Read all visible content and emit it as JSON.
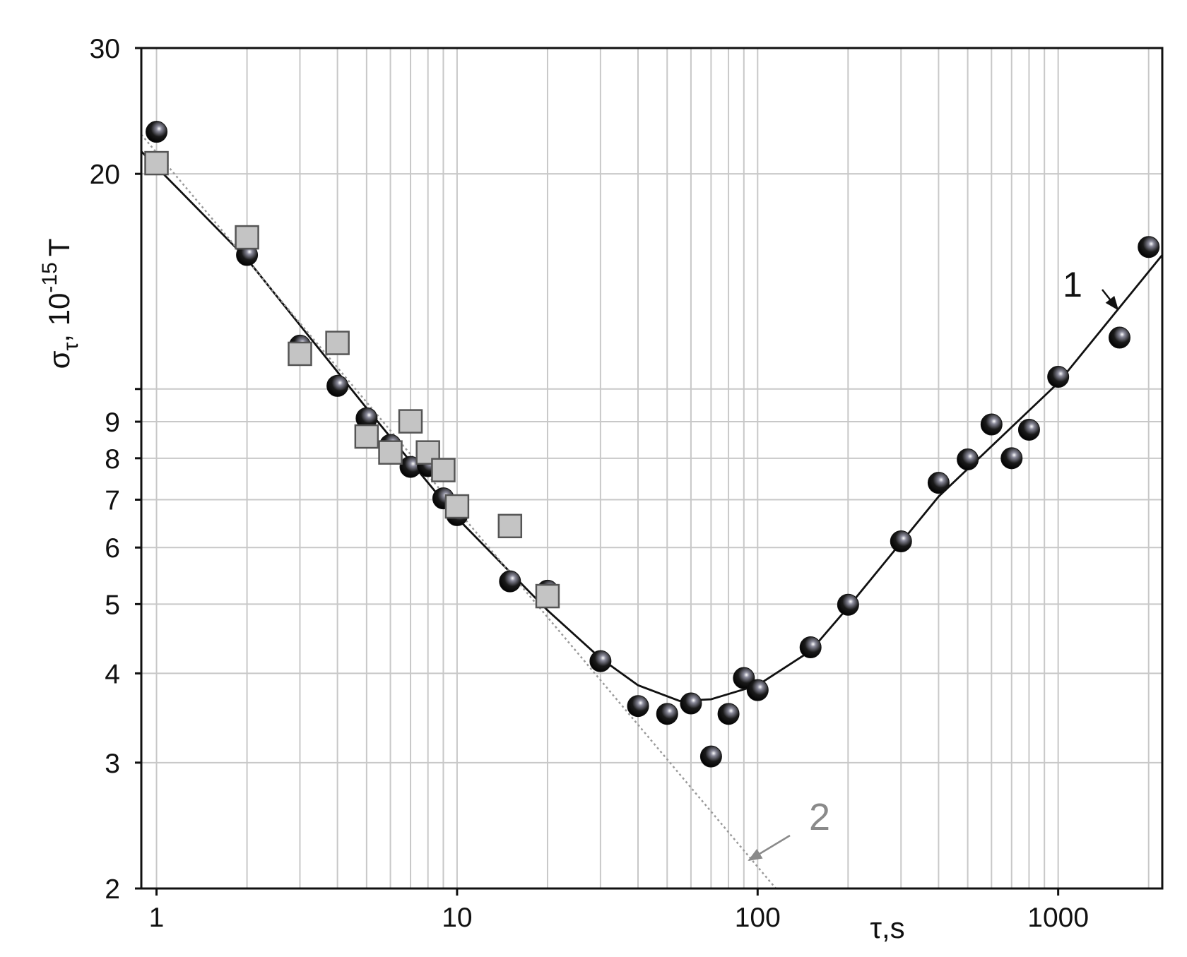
{
  "chart_data": {
    "type": "scatter",
    "xscale": "log",
    "yscale": "log",
    "grid": true,
    "xlim": [
      0.89,
      2220
    ],
    "ylim": [
      2,
      30
    ],
    "xticks": [
      1,
      10,
      100,
      1000
    ],
    "xminor": [
      2,
      3,
      4,
      5,
      6,
      7,
      8,
      9,
      20,
      30,
      40,
      50,
      60,
      70,
      80,
      90,
      200,
      300,
      400,
      500,
      600,
      700,
      800,
      900,
      2000
    ],
    "yticks": [
      2,
      3,
      4,
      5,
      6,
      7,
      8,
      9,
      {
        "value": 10,
        "label": null
      },
      20,
      30
    ],
    "xlabel": "τ,s",
    "ylabel": {
      "base": "σ",
      "sub": "τ",
      "text": ", 10",
      "sup": "-15",
      "unit": "T"
    },
    "series": [
      {
        "kind": "scatter",
        "marker": "circle",
        "color": "#111111",
        "x": [
          1,
          2,
          3,
          4,
          5,
          6,
          7,
          8,
          9,
          10,
          15,
          20,
          30,
          40,
          50,
          60,
          70,
          80,
          90,
          100,
          150,
          200,
          300,
          400,
          500,
          600,
          700,
          800,
          1000,
          1600,
          2000
        ],
        "values": [
          22.9,
          15.4,
          11.5,
          10.1,
          9.1,
          8.35,
          7.78,
          7.8,
          7.03,
          6.66,
          5.38,
          5.22,
          4.16,
          3.6,
          3.51,
          3.63,
          3.06,
          3.51,
          3.94,
          3.79,
          4.35,
          4.99,
          6.12,
          7.39,
          7.97,
          8.92,
          8.0,
          8.77,
          10.4,
          11.8,
          15.8
        ]
      },
      {
        "kind": "scatter",
        "marker": "square",
        "color": "#c4c4c4",
        "x": [
          1,
          2,
          3,
          4,
          5,
          6,
          7,
          8,
          9,
          10,
          15,
          20
        ],
        "values": [
          20.7,
          16.3,
          11.2,
          11.6,
          8.58,
          8.15,
          9.01,
          8.15,
          7.7,
          6.85,
          6.43,
          5.13
        ]
      },
      {
        "kind": "line",
        "name": "1",
        "color": "#111111",
        "style": "solid",
        "x": [
          0.89,
          2,
          5,
          10,
          20,
          30,
          40,
          55,
          70,
          100,
          150,
          200,
          400,
          1000,
          2220
        ],
        "values": [
          21.5,
          15.2,
          9.4,
          6.6,
          4.9,
          4.2,
          3.85,
          3.66,
          3.68,
          3.85,
          4.3,
          4.95,
          7.07,
          10.2,
          15.4
        ]
      },
      {
        "kind": "line",
        "name": "2",
        "color": "#9a9a9a",
        "style": "dotted",
        "x": [
          0.89,
          115
        ],
        "values": [
          22.7,
          2
        ]
      }
    ]
  }
}
